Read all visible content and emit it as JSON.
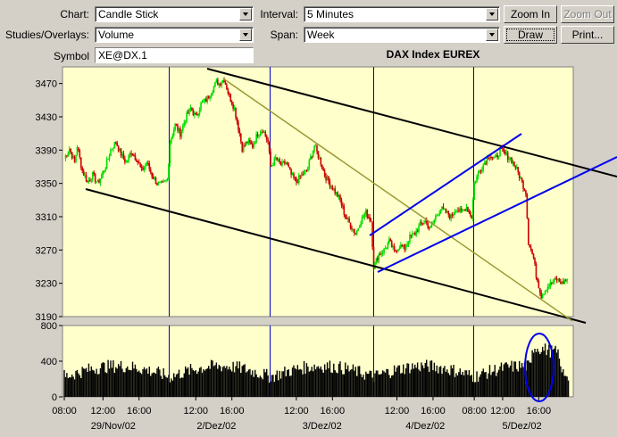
{
  "controls": {
    "chart_label": "Chart:",
    "chart_value": "Candle Stick",
    "studies_label": "Studies/Overlays:",
    "studies_value": "Volume",
    "symbol_label": "Symbol",
    "symbol_value": "XE@DX.1",
    "interval_label": "Interval:",
    "interval_value": "5 Minutes",
    "span_label": "Span:",
    "span_value": "Week",
    "zoom_in": "Zoom In",
    "zoom_out": "Zoom Out",
    "draw": "Draw",
    "print": "Print..."
  },
  "chart_data": {
    "type": "candlestick",
    "title": "DAX Index  EUREX",
    "ylim": [
      3190,
      3490
    ],
    "y_ticks": [
      3190,
      3230,
      3270,
      3310,
      3350,
      3390,
      3430,
      3470
    ],
    "volume_ylim": [
      0,
      800
    ],
    "volume_ticks": [
      0,
      400,
      800
    ],
    "x_time_ticks": [
      "08:00",
      "12:00",
      "16:00",
      "12:00",
      "16:00",
      "12:00",
      "16:00",
      "12:00",
      "16:00",
      "08:00",
      "12:00",
      "16:00"
    ],
    "days": [
      "29/Nov/02",
      "2/Dez/02",
      "3/Dez/02",
      "4/Dez/02",
      "5/Dez/02"
    ],
    "colors": {
      "up": "#00dd00",
      "down": "#cc0000",
      "background": "#ffffcc",
      "day_separator": "#0000cc",
      "volume": "#000000"
    },
    "price_path": [
      [
        0,
        3380
      ],
      [
        4,
        3392
      ],
      [
        8,
        3375
      ],
      [
        10,
        3395
      ],
      [
        14,
        3365
      ],
      [
        18,
        3352
      ],
      [
        22,
        3360
      ],
      [
        26,
        3350
      ],
      [
        32,
        3370
      ],
      [
        36,
        3390
      ],
      [
        40,
        3400
      ],
      [
        44,
        3385
      ],
      [
        48,
        3375
      ],
      [
        52,
        3388
      ],
      [
        56,
        3380
      ],
      [
        60,
        3365
      ],
      [
        64,
        3375
      ],
      [
        68,
        3360
      ],
      [
        72,
        3350
      ],
      [
        76,
        3348
      ],
      [
        80,
        3355
      ],
      [
        82,
        3400
      ],
      [
        86,
        3420
      ],
      [
        90,
        3410
      ],
      [
        94,
        3428
      ],
      [
        98,
        3440
      ],
      [
        102,
        3430
      ],
      [
        106,
        3445
      ],
      [
        110,
        3450
      ],
      [
        114,
        3460
      ],
      [
        118,
        3472
      ],
      [
        120,
        3470
      ],
      [
        124,
        3475
      ],
      [
        128,
        3455
      ],
      [
        132,
        3440
      ],
      [
        136,
        3410
      ],
      [
        138,
        3392
      ],
      [
        142,
        3400
      ],
      [
        146,
        3395
      ],
      [
        150,
        3410
      ],
      [
        154,
        3415
      ],
      [
        158,
        3400
      ],
      [
        160,
        3370
      ],
      [
        164,
        3380
      ],
      [
        168,
        3372
      ],
      [
        172,
        3375
      ],
      [
        176,
        3360
      ],
      [
        180,
        3352
      ],
      [
        184,
        3360
      ],
      [
        188,
        3365
      ],
      [
        192,
        3385
      ],
      [
        194,
        3395
      ],
      [
        198,
        3380
      ],
      [
        202,
        3360
      ],
      [
        206,
        3350
      ],
      [
        210,
        3340
      ],
      [
        214,
        3330
      ],
      [
        218,
        3310
      ],
      [
        222,
        3300
      ],
      [
        226,
        3290
      ],
      [
        230,
        3305
      ],
      [
        234,
        3315
      ],
      [
        238,
        3305
      ],
      [
        240,
        3250
      ],
      [
        244,
        3265
      ],
      [
        248,
        3270
      ],
      [
        252,
        3280
      ],
      [
        256,
        3268
      ],
      [
        260,
        3275
      ],
      [
        264,
        3272
      ],
      [
        268,
        3285
      ],
      [
        272,
        3290
      ],
      [
        276,
        3300
      ],
      [
        280,
        3305
      ],
      [
        284,
        3295
      ],
      [
        288,
        3310
      ],
      [
        292,
        3320
      ],
      [
        296,
        3315
      ],
      [
        300,
        3310
      ],
      [
        304,
        3320
      ],
      [
        308,
        3315
      ],
      [
        312,
        3322
      ],
      [
        316,
        3310
      ],
      [
        318,
        3350
      ],
      [
        322,
        3365
      ],
      [
        326,
        3375
      ],
      [
        330,
        3385
      ],
      [
        334,
        3378
      ],
      [
        338,
        3390
      ],
      [
        342,
        3385
      ],
      [
        346,
        3380
      ],
      [
        350,
        3370
      ],
      [
        354,
        3355
      ],
      [
        358,
        3340
      ],
      [
        360,
        3280
      ],
      [
        364,
        3260
      ],
      [
        366,
        3240
      ],
      [
        370,
        3215
      ],
      [
        374,
        3225
      ],
      [
        378,
        3230
      ],
      [
        382,
        3235
      ],
      [
        386,
        3230
      ],
      [
        390,
        3235
      ]
    ]
  }
}
